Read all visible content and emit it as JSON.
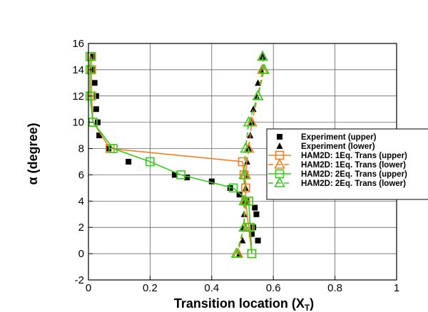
{
  "colors": {
    "orange": "#f5801f",
    "green": "#33cc1a",
    "black": "#000000",
    "grid": "#4d4d4d"
  },
  "chart_data": {
    "type": "line",
    "xlabel": "Transition location (X",
    "xlabel_sub": "T",
    "xlabel_end": ")",
    "ylabel": "α (degree)",
    "xlim": [
      0,
      1
    ],
    "ylim": [
      -2,
      16
    ],
    "x_ticks": [
      "0",
      "0.2",
      "0.4",
      "0.6",
      "0.8",
      "1"
    ],
    "x_tick_values": [
      0,
      0.2,
      0.4,
      0.6,
      0.8,
      1
    ],
    "y_ticks": [
      "-2",
      "0",
      "2",
      "4",
      "6",
      "8",
      "10",
      "12",
      "14",
      "16"
    ],
    "y_tick_values": [
      -2,
      0,
      2,
      4,
      6,
      8,
      10,
      12,
      14,
      16
    ],
    "grid": true,
    "legend_position": "right",
    "series": [
      {
        "name": "Experiment (upper)",
        "style": "marker",
        "marker": "filled-square",
        "color": "#000000",
        "points": [
          [
            0.015,
            15
          ],
          [
            0.015,
            14
          ],
          [
            0.02,
            13
          ],
          [
            0.025,
            12
          ],
          [
            0.025,
            11
          ],
          [
            0.03,
            10
          ],
          [
            0.035,
            9
          ],
          [
            0.065,
            8
          ],
          [
            0.13,
            7
          ],
          [
            0.28,
            6
          ],
          [
            0.32,
            5.8
          ],
          [
            0.4,
            5.5
          ],
          [
            0.46,
            5
          ],
          [
            0.49,
            4.5
          ],
          [
            0.515,
            4
          ],
          [
            0.54,
            3.5
          ],
          [
            0.545,
            3
          ],
          [
            0.535,
            2
          ],
          [
            0.53,
            1.5
          ],
          [
            0.55,
            1
          ]
        ]
      },
      {
        "name": "Experiment (lower)",
        "style": "marker",
        "marker": "filled-triangle",
        "color": "#000000",
        "points": [
          [
            0.565,
            15
          ],
          [
            0.56,
            14
          ],
          [
            0.55,
            13
          ],
          [
            0.545,
            12
          ],
          [
            0.535,
            11
          ],
          [
            0.53,
            10
          ],
          [
            0.525,
            9
          ],
          [
            0.52,
            8
          ],
          [
            0.515,
            7
          ],
          [
            0.515,
            6
          ],
          [
            0.51,
            5
          ],
          [
            0.505,
            4
          ],
          [
            0.505,
            3
          ],
          [
            0.5,
            2
          ],
          [
            0.5,
            1
          ],
          [
            0.49,
            0
          ]
        ]
      },
      {
        "name": "HAM2D: 1Eq. Trans (upper)",
        "style": "line",
        "marker": "open-square",
        "dash": false,
        "color": "#f5801f",
        "points": [
          [
            0.01,
            15
          ],
          [
            0.01,
            14
          ],
          [
            0.01,
            12
          ],
          [
            0.015,
            10
          ],
          [
            0.07,
            8
          ],
          [
            0.5,
            7
          ],
          [
            0.505,
            6
          ],
          [
            0.51,
            5
          ],
          [
            0.51,
            4
          ],
          [
            0.52,
            2
          ],
          [
            0.53,
            0
          ]
        ]
      },
      {
        "name": "HAM2D: 1Eq. Trans (lower)",
        "style": "line",
        "marker": "open-triangle",
        "dash": true,
        "color": "#f5801f",
        "points": [
          [
            0.565,
            15
          ],
          [
            0.565,
            14
          ],
          [
            0.55,
            12
          ],
          [
            0.53,
            10
          ],
          [
            0.52,
            8
          ],
          [
            0.51,
            6
          ],
          [
            0.51,
            4
          ],
          [
            0.505,
            2
          ],
          [
            0.485,
            0
          ]
        ]
      },
      {
        "name": "HAM2D: 2Eq. Trans (upper)",
        "style": "line",
        "marker": "open-square",
        "dash": false,
        "color": "#33cc1a",
        "points": [
          [
            0.005,
            15
          ],
          [
            0.005,
            14
          ],
          [
            0.005,
            12
          ],
          [
            0.015,
            10
          ],
          [
            0.08,
            8
          ],
          [
            0.2,
            7
          ],
          [
            0.3,
            6
          ],
          [
            0.47,
            5
          ],
          [
            0.52,
            4
          ],
          [
            0.525,
            2
          ],
          [
            0.53,
            0
          ]
        ]
      },
      {
        "name": "HAM2D: 2Eq. Trans (lower)",
        "style": "line",
        "marker": "open-triangle",
        "dash": true,
        "color": "#33cc1a",
        "points": [
          [
            0.565,
            15
          ],
          [
            0.57,
            14
          ],
          [
            0.55,
            12
          ],
          [
            0.52,
            10
          ],
          [
            0.51,
            8
          ],
          [
            0.505,
            6
          ],
          [
            0.505,
            4
          ],
          [
            0.505,
            2
          ],
          [
            0.48,
            0
          ]
        ]
      }
    ]
  }
}
